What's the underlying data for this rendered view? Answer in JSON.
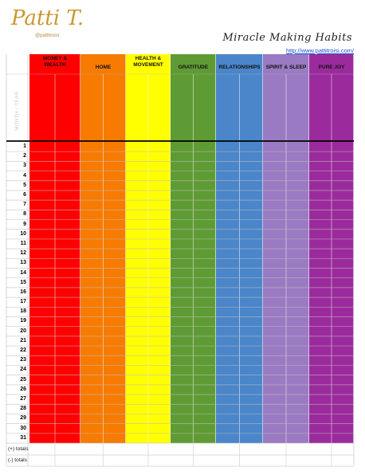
{
  "header": {
    "brand": "Patti T.",
    "handle": "@pattitroisi",
    "title": "Miracle Making Habits",
    "url": "http://www.pattitroisi.com/"
  },
  "table": {
    "row_header": "MONTH / YEAR",
    "columns": [
      {
        "label": "MONEY & WEALTH",
        "color": "#ff0000"
      },
      {
        "label": "HOME",
        "color": "#f77b00"
      },
      {
        "label": "HEALTH & MOVEMENT",
        "color": "#ffff00"
      },
      {
        "label": "GRATITUDE",
        "color": "#5f9b34"
      },
      {
        "label": "RELATIONSHIPS",
        "color": "#4a86c9"
      },
      {
        "label": "SPIRIT & SLEEP",
        "color": "#9a7ac2"
      },
      {
        "label": "PURE JOY",
        "color": "#9b2b9c"
      }
    ],
    "days": [
      1,
      2,
      3,
      4,
      5,
      6,
      7,
      8,
      9,
      10,
      11,
      12,
      13,
      14,
      15,
      16,
      17,
      18,
      19,
      20,
      21,
      22,
      23,
      24,
      25,
      26,
      27,
      28,
      29,
      30,
      31
    ],
    "totals": [
      "(+) totals",
      "(-) totals"
    ]
  }
}
